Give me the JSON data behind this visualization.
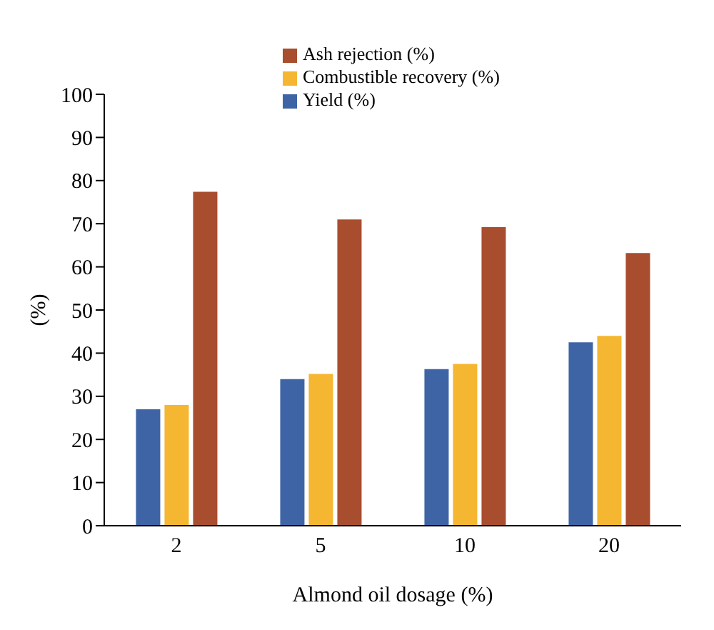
{
  "chart_data": {
    "type": "bar",
    "xlabel": "Almond oil dosage (%)",
    "ylabel": "(%)",
    "categories": [
      "2",
      "5",
      "10",
      "20"
    ],
    "series": [
      {
        "name": "Yield (%)",
        "color": "#3e64a6",
        "values": [
          27,
          34,
          36.3,
          42.5
        ]
      },
      {
        "name": "Combustible recovery (%)",
        "color": "#f5b731",
        "values": [
          28,
          35.2,
          37.5,
          44
        ]
      },
      {
        "name": "Ash rejection (%)",
        "color": "#a84d2e",
        "values": [
          77.4,
          71,
          69.2,
          63.2
        ]
      }
    ],
    "ylim": [
      0,
      100
    ],
    "yticks": [
      0,
      10,
      20,
      30,
      40,
      50,
      60,
      70,
      80,
      90,
      100
    ],
    "grid": false,
    "legend": "top"
  }
}
